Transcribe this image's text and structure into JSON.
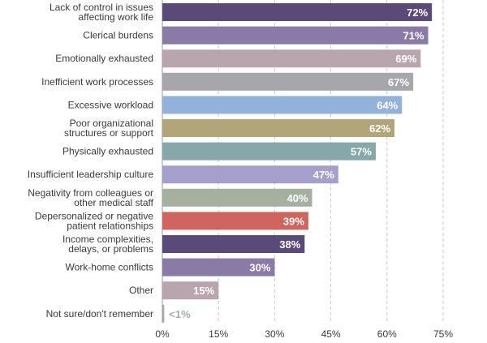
{
  "chart_data": {
    "type": "bar",
    "orientation": "horizontal",
    "categories": [
      [
        "Lack of control in issues",
        "affecting work life"
      ],
      [
        "Clerical burdens"
      ],
      [
        "Emotionally exhausted"
      ],
      [
        "Inefficient work processes"
      ],
      [
        "Excessive workload"
      ],
      [
        "Poor organizational",
        "structures or support"
      ],
      [
        "Physically exhausted"
      ],
      [
        "Insufficient leadership culture"
      ],
      [
        "Negativity from colleagues or",
        "other medical staff"
      ],
      [
        "Depersonalized or negative",
        "patient relationships"
      ],
      [
        "Income complexities,",
        "delays, or problems"
      ],
      [
        "Work-home conflicts"
      ],
      [
        "Other"
      ],
      [
        "Not sure/don't remember"
      ]
    ],
    "values": [
      72,
      71,
      69,
      67,
      64,
      62,
      57,
      47,
      40,
      39,
      38,
      30,
      15,
      0.5
    ],
    "value_labels": [
      "72%",
      "71%",
      "69%",
      "67%",
      "64%",
      "62%",
      "57%",
      "47%",
      "40%",
      "39%",
      "38%",
      "30%",
      "15%",
      "<1%"
    ],
    "colors": [
      "#5a4a78",
      "#8a7aa6",
      "#b9a5ae",
      "#a6a6ac",
      "#93b2db",
      "#b2a57a",
      "#86a8ab",
      "#a59fcb",
      "#a6b0a1",
      "#cf655e",
      "#5a4a78",
      "#8a7aa6",
      "#b9a5ae",
      "#a6a6ac"
    ],
    "xlim": [
      0,
      75
    ],
    "ticks": [
      0,
      15,
      30,
      45,
      60,
      75
    ],
    "tick_labels": [
      "0%",
      "15%",
      "30%",
      "45%",
      "60%",
      "75%"
    ],
    "grid": true,
    "title": "",
    "xlabel": "",
    "ylabel": ""
  }
}
